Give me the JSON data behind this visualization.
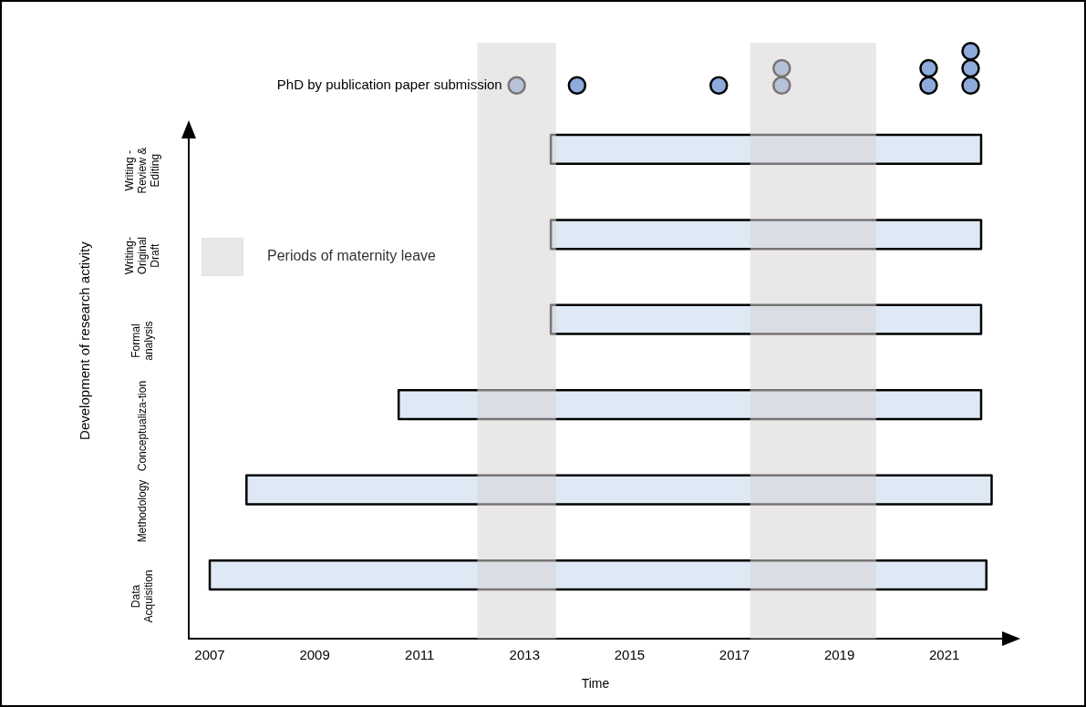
{
  "chart_data": {
    "type": "bar",
    "orientation": "horizontal",
    "xlabel": "Time",
    "ylabel": "Development of research activity",
    "categories": [
      "PhD by publication paper submission",
      "Writing - Review & Editing",
      "Writing- Original Draft",
      "Formal analysis",
      "Conceptualiza-tion",
      "Methodology",
      "Data Acquisition"
    ],
    "series": [
      {
        "color": "#dee9f5",
        "base": [
          null,
          2013.5,
          2013.5,
          2013.5,
          2010.6,
          2007.7,
          2007.0
        ],
        "values": [
          null,
          8.2,
          8.2,
          8.2,
          11.1,
          14.2,
          14.8
        ]
      },
      {
        "type": "scatter",
        "color": "#8eaadb",
        "x": [
          "PhD by publication paper submission",
          "PhD by publication paper submission",
          "PhD by publication paper submission",
          "PhD by publication paper submission",
          "PhD by publication paper submission",
          "PhD by publication paper submission",
          "PhD by publication paper submission",
          "PhD by publication paper submission",
          "PhD by publication paper submission",
          "PhD by publication paper submission"
        ],
        "values": [
          2012.85,
          2014.0,
          2016.7,
          2017.9,
          2017.9,
          2020.7,
          2020.7,
          2021.5,
          2021.5,
          2021.5
        ]
      }
    ],
    "bands": [
      {
        "axis": "x",
        "from": 2012.1,
        "to": 2013.6,
        "label": "Periods of maternity leave",
        "color": "#d9d4d6"
      },
      {
        "axis": "x",
        "from": 2017.3,
        "to": 2019.7,
        "color": "#d9d4d6"
      }
    ],
    "xlim": [
      2006.6,
      2022.1
    ],
    "xticks": [
      2007,
      2009,
      2011,
      2013,
      2015,
      2017,
      2019,
      2021
    ],
    "grid": false,
    "marker": "circle"
  }
}
